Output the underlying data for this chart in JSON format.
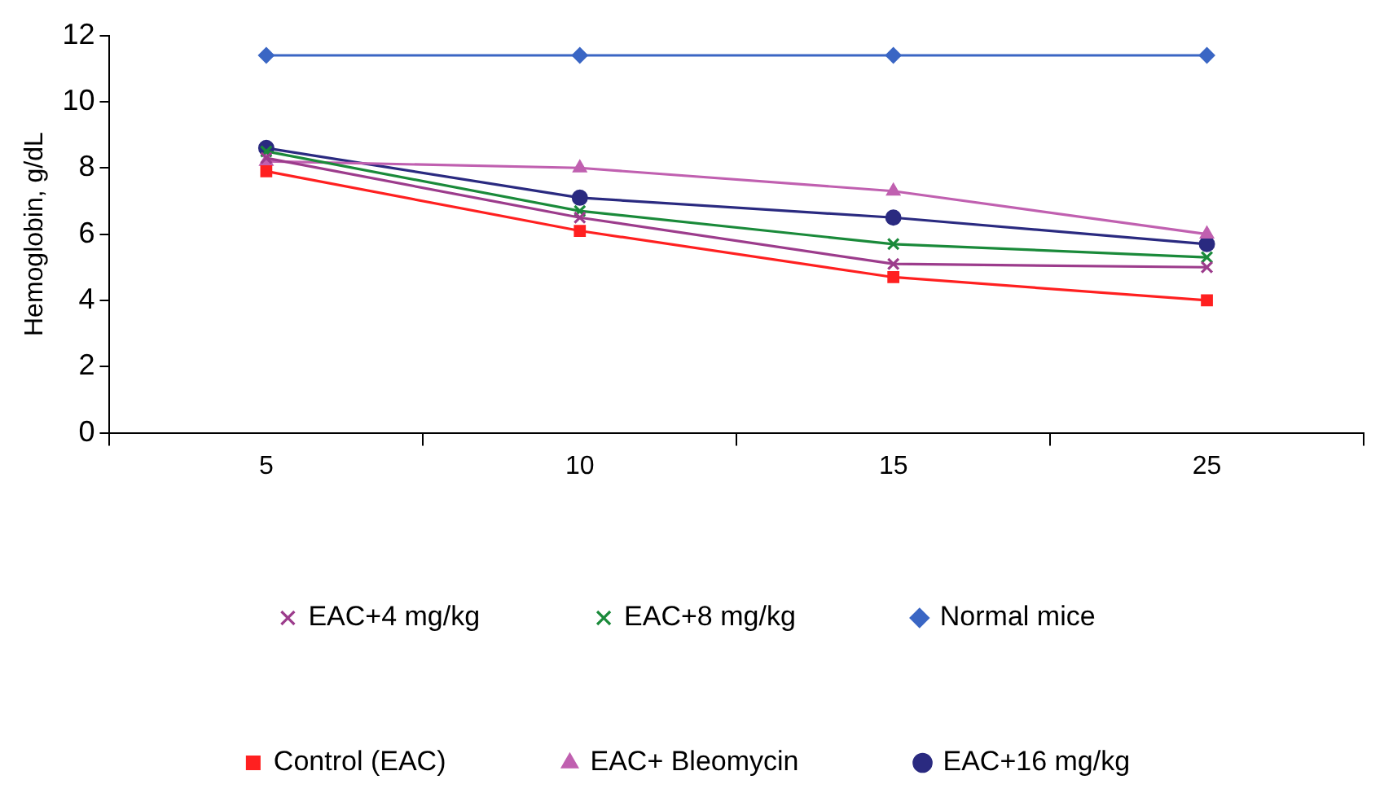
{
  "chart_data": {
    "type": "line",
    "ylabel": "Hemoglobin, g/dL",
    "categories": [
      "5",
      "10",
      "15",
      "25"
    ],
    "ylim": [
      0,
      12
    ],
    "yticks": [
      0,
      2,
      4,
      6,
      8,
      10,
      12
    ],
    "grid": false,
    "legend": "bottom",
    "series": [
      {
        "name": "Normal mice",
        "color": "#3a66c4",
        "marker": "diamond",
        "values": [
          11.4,
          11.4,
          11.4,
          11.4
        ]
      },
      {
        "name": "Control (EAC)",
        "color": "#ff2020",
        "marker": "square",
        "values": [
          7.9,
          6.1,
          4.7,
          4.0
        ]
      },
      {
        "name": "EAC+ Bleomycin",
        "color": "#c060b0",
        "marker": "triangle",
        "values": [
          8.2,
          8.0,
          7.3,
          6.0
        ]
      },
      {
        "name": "EAC+4 mg/kg",
        "color": "#9c3c8c",
        "marker": "cross",
        "values": [
          8.3,
          6.5,
          5.1,
          5.0
        ]
      },
      {
        "name": "EAC+8 mg/kg",
        "color": "#1a8a3a",
        "marker": "cross",
        "values": [
          8.5,
          6.7,
          5.7,
          5.3
        ]
      },
      {
        "name": "EAC+16 mg/kg",
        "color": "#2a2a80",
        "marker": "circle",
        "values": [
          8.6,
          7.1,
          6.5,
          5.7
        ]
      }
    ]
  }
}
